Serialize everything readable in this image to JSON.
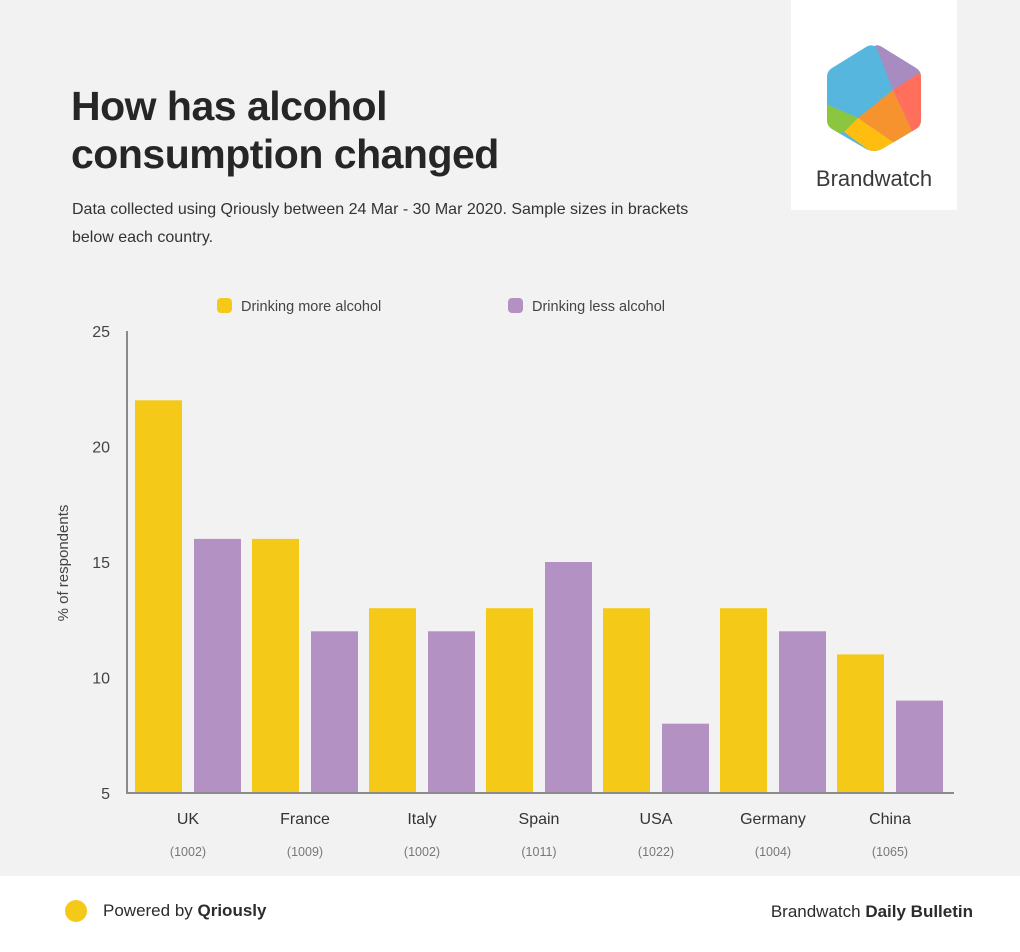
{
  "header": {
    "title": "How has alcohol consumption changed",
    "subtitle": "Data collected using Qriously between 24 Mar - 30 Mar 2020. Sample sizes in brackets below each country."
  },
  "logo": {
    "name": "Brandwatch",
    "icon": "brandwatch-hexagon-logo",
    "colors": [
      "#57b6dd",
      "#a88bc1",
      "#ff6f5b",
      "#f7932e",
      "#8cc63f",
      "#ffbe0f"
    ]
  },
  "chart_data": {
    "type": "bar",
    "title": "How has alcohol consumption changed",
    "xlabel": "",
    "ylabel": "% of respondents",
    "ylim": [
      5,
      25
    ],
    "yticks": [
      5,
      10,
      15,
      20,
      25
    ],
    "grid": false,
    "legend_position": "top",
    "categories": [
      "UK",
      "France",
      "Italy",
      "Spain",
      "USA",
      "Germany",
      "China"
    ],
    "sample_sizes": [
      "(1002)",
      "(1009)",
      "(1002)",
      "(1011)",
      "(1022)",
      "(1004)",
      "(1065)"
    ],
    "series": [
      {
        "name": "Drinking more alcohol",
        "color": "#f5c918",
        "values": [
          22,
          16,
          13,
          13,
          13,
          13,
          11
        ]
      },
      {
        "name": "Drinking less alcohol",
        "color": "#b391c2",
        "values": [
          16,
          12,
          12,
          15,
          8,
          12,
          9
        ]
      }
    ]
  },
  "footer": {
    "powered_prefix": "Powered by ",
    "powered_brand": "Qriously",
    "dot_color": "#f5c918",
    "right_prefix": "Brandwatch ",
    "right_bold": "Daily Bulletin"
  }
}
